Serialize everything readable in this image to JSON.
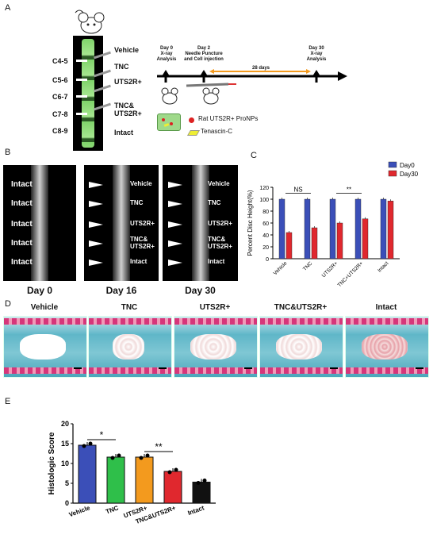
{
  "panel_labels": {
    "a": "A",
    "b": "B",
    "c": "C",
    "d": "D",
    "e": "E"
  },
  "panel_a": {
    "vertebrae": [
      "C4-5",
      "C5-6",
      "C6-7",
      "C7-8",
      "C8-9"
    ],
    "groups": [
      "Vehicle",
      "TNC",
      "UTS2R+",
      "TNC&\nUTS2R+",
      "Intact"
    ],
    "timeline": {
      "day0": "Day 0\nX-ray\nAnalysis",
      "day2": "Day 2\nNeedle Puncture\nand Cell injection",
      "interval": "28 days",
      "day30": "Day 30\nX-ray\nAnalysis"
    },
    "legend": {
      "pronps": "Rat UTS2R+ ProNPs",
      "tenascin": "Tenascin-C"
    }
  },
  "panel_b": {
    "day0_labels": [
      "Intact",
      "Intact",
      "Intact",
      "Intact",
      "Intact"
    ],
    "treat_labels": [
      "Vehicle",
      "TNC",
      "UTS2R+",
      "TNC&\nUTS2R+",
      "Intact"
    ],
    "days": [
      "Day 0",
      "Day 16",
      "Day 30"
    ]
  },
  "panel_d": {
    "labels": [
      "Vehicle",
      "TNC",
      "UTS2R+",
      "TNC&UTS2R+",
      "Intact"
    ]
  },
  "chart_data": [
    {
      "type": "bar",
      "panel": "C",
      "ylabel": "Percent Disc Height(%)",
      "ylim": [
        0,
        120
      ],
      "yticks": [
        0,
        20,
        40,
        60,
        80,
        100,
        120
      ],
      "categories": [
        "Vehicle",
        "TNC",
        "UTS2R+",
        "TNC+UTS2R+",
        "Intact"
      ],
      "series": [
        {
          "name": "Day0",
          "color": "#3b4fb8",
          "values": [
            100,
            100,
            100,
            100,
            100
          ]
        },
        {
          "name": "Day30",
          "color": "#e0282e",
          "values": [
            44,
            52,
            60,
            67,
            97
          ]
        }
      ],
      "annotations": [
        "NS",
        "**"
      ],
      "legend": "top-right"
    },
    {
      "type": "bar",
      "panel": "E",
      "ylabel": "Histologic Score",
      "ylim": [
        0,
        20
      ],
      "yticks": [
        0,
        5,
        10,
        15,
        20
      ],
      "categories": [
        "Vehicle",
        "TNC",
        "UTS2R+",
        "TNC&UTS2R+",
        "Intact"
      ],
      "values": [
        14.6,
        11.6,
        11.6,
        8,
        5.3
      ],
      "colors": [
        "#3b4fb8",
        "#2fbf4a",
        "#f39a1e",
        "#e0282e",
        "#111111"
      ],
      "annotations": [
        "*",
        "**"
      ]
    }
  ]
}
